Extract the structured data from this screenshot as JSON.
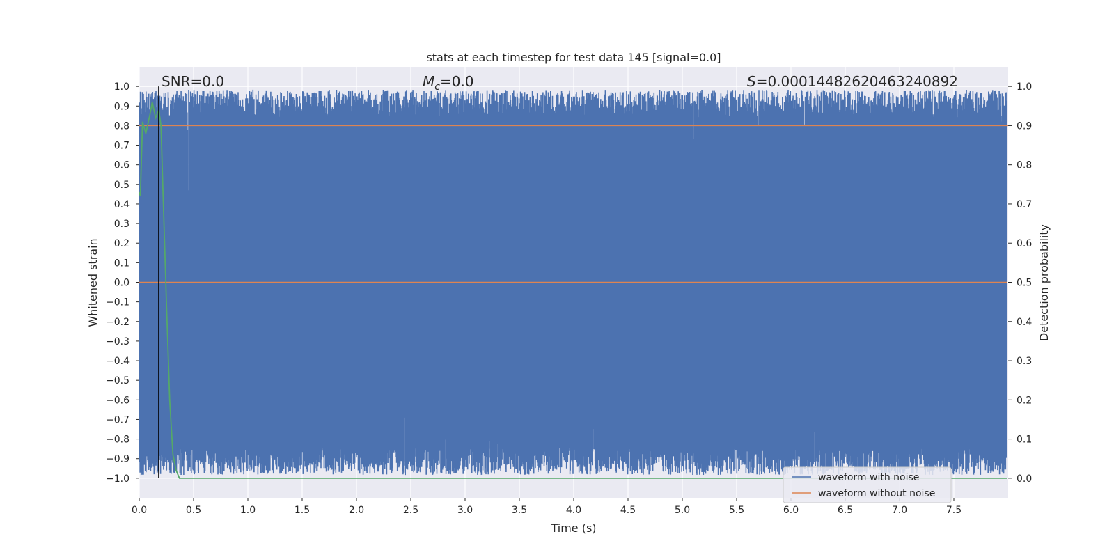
{
  "chart_data": {
    "type": "line",
    "title": "stats at each timestep for test data 145 [signal=0.0]",
    "xlabel": "Time (s)",
    "ylabel": "Whitened strain",
    "y2label": "Detection probability",
    "xlim": [
      0.0,
      8.0
    ],
    "ylim": [
      -1.1,
      1.1
    ],
    "y2lim": [
      -0.05,
      1.05
    ],
    "xticks": [
      "0.0",
      "0.5",
      "1.0",
      "1.5",
      "2.0",
      "2.5",
      "3.0",
      "3.5",
      "4.0",
      "4.5",
      "5.0",
      "5.5",
      "6.0",
      "6.5",
      "7.0",
      "7.5"
    ],
    "yticks": [
      "1.0",
      "0.9",
      "0.8",
      "0.7",
      "0.6",
      "0.5",
      "0.4",
      "0.3",
      "0.2",
      "0.1",
      "0.0",
      "−0.1",
      "−0.2",
      "−0.3",
      "−0.4",
      "−0.5",
      "−0.6",
      "−0.7",
      "−0.8",
      "−0.9",
      "−1.0"
    ],
    "y2ticks": [
      "1.0",
      "0.9",
      "0.8",
      "0.7",
      "0.6",
      "0.5",
      "0.4",
      "0.3",
      "0.2",
      "0.1",
      "0.0"
    ],
    "annotations": {
      "snr": "SNR=0.0",
      "mc_symbol": "M",
      "mc_sub": "c",
      "mc_value": "=0.0",
      "s_symbol": "S",
      "s_value": "=0.0001448262046324089​2"
    },
    "threshold_line": {
      "axis": "right",
      "y": 0.9,
      "color": "#dd8452"
    },
    "marker_line": {
      "x": 0.18,
      "color": "#000000"
    },
    "series": [
      {
        "name": "waveform with noise",
        "axis": "left",
        "color": "#4c72b0",
        "description": "dense noise filling most of the strain range; per-sample envelope with occasional dips",
        "x_range": [
          0.0,
          7.99
        ],
        "upper_typical": 0.92,
        "lower_typical": -0.92,
        "notable_upper_dips": [
          [
            0.08,
            0.6
          ],
          [
            0.45,
            0.47
          ],
          [
            1.2,
            0.56
          ],
          [
            1.22,
            0.06
          ],
          [
            1.97,
            0.55
          ],
          [
            3.92,
            0.23
          ],
          [
            4.05,
            0.25
          ],
          [
            4.2,
            0.36
          ],
          [
            4.7,
            0.23
          ],
          [
            5.55,
            0.26
          ],
          [
            3.45,
            0.72
          ]
        ],
        "notable_lower_peaks": [
          [
            1.99,
            -0.2
          ],
          [
            5.48,
            -0.06
          ],
          [
            3.43,
            -0.46
          ],
          [
            2.44,
            -0.52
          ],
          [
            7.15,
            -0.54
          ]
        ]
      },
      {
        "name": "waveform without noise",
        "axis": "left",
        "color": "#dd8452",
        "x": [
          0.0,
          7.99
        ],
        "y": [
          0.0,
          0.0
        ]
      },
      {
        "name": "detection probability",
        "axis": "right",
        "color": "#55a868",
        "x": [
          0.0,
          0.01,
          0.03,
          0.06,
          0.1,
          0.12,
          0.15,
          0.18,
          0.2,
          0.22,
          0.25,
          0.28,
          0.31,
          0.34,
          0.37,
          0.4,
          1.0,
          2.0,
          4.0,
          6.0,
          7.99
        ],
        "y": [
          0.73,
          0.72,
          0.91,
          0.88,
          0.93,
          0.96,
          0.92,
          0.94,
          0.9,
          0.72,
          0.45,
          0.2,
          0.06,
          0.02,
          0.0,
          0.0,
          0.0,
          0.0,
          0.0,
          0.0,
          0.0
        ]
      }
    ],
    "legend": {
      "placement": "lower-right",
      "entries": [
        {
          "label": "waveform with noise",
          "color": "#4c72b0"
        },
        {
          "label": "waveform without noise",
          "color": "#dd8452"
        }
      ]
    }
  }
}
